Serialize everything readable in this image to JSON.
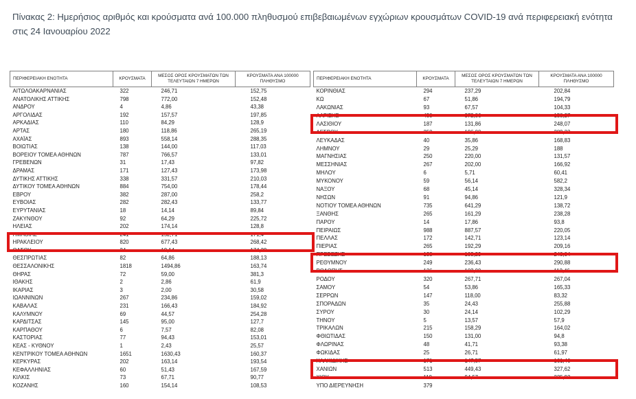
{
  "page": {
    "title": "Πίνακας 2:  Ημερήσιος αριθμός και κρούσματα ανά 100.000 πληθυσμού επιβεβαιωμένων εγχώριων κρουσμάτων COVID-19 ανά περιφερειακή ενότητα στις 24 Ιανουαρίου 2022"
  },
  "table": {
    "highlight_color": "#e01717",
    "headers": [
      "ΠΕΡΙΦΕΡΕΙΑΚΗ ΕΝΟΤΗΤΑ",
      "ΚΡΟΥΣΜΑΤΑ",
      "ΜΕΣΟΣ ΟΡΟΣ ΚΡΟΥΣΜΑΤΩΝ ΤΩΝ ΤΕΛΕΥΤΑΙΩΝ 7 ΗΜΕΡΩΝ",
      "ΚΡΟΥΣΜΑΤΑ ΑΝΑ 100000 ΠΛΗΘΥΣΜΟ"
    ],
    "left_rows": [
      {
        "region": "ΑΙΤΩΛΟΑΚΑΡΝΑΝΙΑΣ",
        "cases": "322",
        "avg7": "246,71",
        "per100k": "152,75",
        "highlighted": false
      },
      {
        "region": "ΑΝΑΤΟΛΙΚΗΣ ΑΤΤΙΚΗΣ",
        "cases": "798",
        "avg7": "772,00",
        "per100k": "152,48",
        "highlighted": false
      },
      {
        "region": "ΑΝΔΡΟΥ",
        "cases": "4",
        "avg7": "4,86",
        "per100k": "43,38",
        "highlighted": false
      },
      {
        "region": "ΑΡΓΟΛΙΔΑΣ",
        "cases": "192",
        "avg7": "157,57",
        "per100k": "197,85",
        "highlighted": false
      },
      {
        "region": "ΑΡΚΑΔΙΑΣ",
        "cases": "110",
        "avg7": "84,29",
        "per100k": "128,9",
        "highlighted": false
      },
      {
        "region": "ΑΡΤΑΣ",
        "cases": "180",
        "avg7": "118,86",
        "per100k": "265,19",
        "highlighted": false
      },
      {
        "region": "ΑΧΑΪΑΣ",
        "cases": "893",
        "avg7": "558,14",
        "per100k": "288,35",
        "highlighted": false
      },
      {
        "region": "ΒΟΙΩΤΙΑΣ",
        "cases": "138",
        "avg7": "144,00",
        "per100k": "117,03",
        "highlighted": false
      },
      {
        "region": "ΒΟΡΕΙΟΥ ΤΟΜΕΑ ΑΘΗΝΩΝ",
        "cases": "787",
        "avg7": "766,57",
        "per100k": "133,01",
        "highlighted": false
      },
      {
        "region": "ΓΡΕΒΕΝΩΝ",
        "cases": "31",
        "avg7": "17,43",
        "per100k": "97,82",
        "highlighted": false
      },
      {
        "region": "ΔΡΑΜΑΣ",
        "cases": "171",
        "avg7": "127,43",
        "per100k": "173,98",
        "highlighted": false
      },
      {
        "region": "ΔΥΤΙΚΗΣ ΑΤΤΙΚΗΣ",
        "cases": "338",
        "avg7": "331,57",
        "per100k": "210,03",
        "highlighted": false
      },
      {
        "region": "ΔΥΤΙΚΟΥ ΤΟΜΕΑ ΑΘΗΝΩΝ",
        "cases": "884",
        "avg7": "754,00",
        "per100k": "178,44",
        "highlighted": false
      },
      {
        "region": "ΕΒΡΟΥ",
        "cases": "382",
        "avg7": "287,00",
        "per100k": "258,2",
        "highlighted": false
      },
      {
        "region": "ΕΥΒΟΙΑΣ",
        "cases": "282",
        "avg7": "282,43",
        "per100k": "133,77",
        "highlighted": false
      },
      {
        "region": "ΕΥΡΥΤΑΝΙΑΣ",
        "cases": "18",
        "avg7": "14,14",
        "per100k": "89,84",
        "highlighted": false
      },
      {
        "region": "ΖΑΚΥΝΘΟΥ",
        "cases": "92",
        "avg7": "64,29",
        "per100k": "225,72",
        "highlighted": false
      },
      {
        "region": "ΗΛΕΙΑΣ",
        "cases": "202",
        "avg7": "174,14",
        "per100k": "128,8",
        "highlighted": false
      },
      {
        "region": "ΗΜΑΘΙΑΣ",
        "cases": "241",
        "avg7": "152,71",
        "per100k": "171,4",
        "highlighted": false
      },
      {
        "region": "ΗΡΑΚΛΕΙΟΥ",
        "cases": "820",
        "avg7": "677,43",
        "per100k": "268,42",
        "highlighted": true
      },
      {
        "region": "ΘΑΣΟΥ",
        "cases": "24",
        "avg7": "19,14",
        "per100k": "174,29",
        "highlighted": false
      },
      {
        "region": "ΘΕΣΠΡΩΤΙΑΣ",
        "cases": "82",
        "avg7": "64,86",
        "per100k": "188,13",
        "highlighted": false
      },
      {
        "region": "ΘΕΣΣΑΛΟΝΙΚΗΣ",
        "cases": "1818",
        "avg7": "1494,86",
        "per100k": "163,74",
        "highlighted": false
      },
      {
        "region": "ΘΗΡΑΣ",
        "cases": "72",
        "avg7": "59,00",
        "per100k": "381,3",
        "highlighted": false
      },
      {
        "region": "ΙΘΑΚΗΣ",
        "cases": "2",
        "avg7": "2,86",
        "per100k": "61,9",
        "highlighted": false
      },
      {
        "region": "ΙΚΑΡΙΑΣ",
        "cases": "3",
        "avg7": "2,00",
        "per100k": "30,58",
        "highlighted": false
      },
      {
        "region": "ΙΩΑΝΝΙΝΩΝ",
        "cases": "267",
        "avg7": "234,86",
        "per100k": "159,02",
        "highlighted": false
      },
      {
        "region": "ΚΑΒΑΛΑΣ",
        "cases": "231",
        "avg7": "166,43",
        "per100k": "184,92",
        "highlighted": false
      },
      {
        "region": "ΚΑΛΥΜΝΟΥ",
        "cases": "69",
        "avg7": "44,57",
        "per100k": "254,28",
        "highlighted": false
      },
      {
        "region": "ΚΑΡΔΙΤΣΑΣ",
        "cases": "145",
        "avg7": "95,00",
        "per100k": "127,7",
        "highlighted": false
      },
      {
        "region": "ΚΑΡΠΑΘΟΥ",
        "cases": "6",
        "avg7": "7,57",
        "per100k": "82,08",
        "highlighted": false
      },
      {
        "region": "ΚΑΣΤΟΡΙΑΣ",
        "cases": "77",
        "avg7": "94,43",
        "per100k": "153,01",
        "highlighted": false
      },
      {
        "region": "ΚΕΑΣ - ΚΥΘΝΟΥ",
        "cases": "1",
        "avg7": "2,43",
        "per100k": "25,57",
        "highlighted": false
      },
      {
        "region": "ΚΕΝΤΡΙΚΟΥ ΤΟΜΕΑ ΑΘΗΝΩΝ",
        "cases": "1651",
        "avg7": "1630,43",
        "per100k": "160,37",
        "highlighted": false
      },
      {
        "region": "ΚΕΡΚΥΡΑΣ",
        "cases": "202",
        "avg7": "163,14",
        "per100k": "193,54",
        "highlighted": false
      },
      {
        "region": "ΚΕΦΑΛΛΗΝΙΑΣ",
        "cases": "60",
        "avg7": "51,43",
        "per100k": "167,59",
        "highlighted": false
      },
      {
        "region": "ΚΙΛΚΙΣ",
        "cases": "73",
        "avg7": "67,71",
        "per100k": "90,77",
        "highlighted": false
      },
      {
        "region": "ΚΟΖΑΝΗΣ",
        "cases": "160",
        "avg7": "154,14",
        "per100k": "108,53",
        "highlighted": false
      }
    ],
    "right_rows": [
      {
        "region": "ΚΟΡΙΝΘΙΑΣ",
        "cases": "294",
        "avg7": "237,29",
        "per100k": "202,84",
        "highlighted": false
      },
      {
        "region": "ΚΩ",
        "cases": "67",
        "avg7": "51,86",
        "per100k": "194,79",
        "highlighted": false
      },
      {
        "region": "ΛΑΚΩΝΙΑΣ",
        "cases": "93",
        "avg7": "67,57",
        "per100k": "104,33",
        "highlighted": false
      },
      {
        "region": "ΛΑΡΙΣΗΣ",
        "cases": "450",
        "avg7": "372,86",
        "per100k": "158,27",
        "highlighted": false
      },
      {
        "region": "ΛΑΣΙΘΙΟΥ",
        "cases": "187",
        "avg7": "131,86",
        "per100k": "248,07",
        "highlighted": true
      },
      {
        "region": "ΛΕΣΒΟΥ",
        "cases": "250",
        "avg7": "196,00",
        "per100k": "289,23",
        "highlighted": false
      },
      {
        "region": "ΛΕΥΚΑΔΑΣ",
        "cases": "40",
        "avg7": "35,86",
        "per100k": "168,83",
        "highlighted": false
      },
      {
        "region": "ΛΗΜΝΟΥ",
        "cases": "29",
        "avg7": "25,29",
        "per100k": "188",
        "highlighted": false
      },
      {
        "region": "ΜΑΓΝΗΣΙΑΣ",
        "cases": "250",
        "avg7": "220,00",
        "per100k": "131,57",
        "highlighted": false
      },
      {
        "region": "ΜΕΣΣΗΝΙΑΣ",
        "cases": "267",
        "avg7": "202,00",
        "per100k": "166,92",
        "highlighted": false
      },
      {
        "region": "ΜΗΛΟΥ",
        "cases": "6",
        "avg7": "5,71",
        "per100k": "60,41",
        "highlighted": false
      },
      {
        "region": "ΜΥΚΟΝΟΥ",
        "cases": "59",
        "avg7": "56,14",
        "per100k": "582,2",
        "highlighted": false
      },
      {
        "region": "ΝΑΞΟΥ",
        "cases": "68",
        "avg7": "45,14",
        "per100k": "328,34",
        "highlighted": false
      },
      {
        "region": "ΝΗΣΩΝ",
        "cases": "91",
        "avg7": "94,86",
        "per100k": "121,9",
        "highlighted": false
      },
      {
        "region": "ΝΟΤΙΟΥ ΤΟΜΕΑ ΑΘΗΝΩΝ",
        "cases": "735",
        "avg7": "641,29",
        "per100k": "138,72",
        "highlighted": false
      },
      {
        "region": "ΞΑΝΘΗΣ",
        "cases": "265",
        "avg7": "161,29",
        "per100k": "238,28",
        "highlighted": false
      },
      {
        "region": "ΠΑΡΟΥ",
        "cases": "14",
        "avg7": "17,86",
        "per100k": "93,8",
        "highlighted": false
      },
      {
        "region": "ΠΕΙΡΑΙΩΣ",
        "cases": "988",
        "avg7": "887,57",
        "per100k": "220,05",
        "highlighted": false
      },
      {
        "region": "ΠΕΛΛΑΣ",
        "cases": "172",
        "avg7": "142,71",
        "per100k": "123,14",
        "highlighted": false
      },
      {
        "region": "ΠΙΕΡΙΑΣ",
        "cases": "265",
        "avg7": "192,29",
        "per100k": "209,16",
        "highlighted": false
      },
      {
        "region": "ΠΡΕΒΕΖΗΣ",
        "cases": "138",
        "avg7": "103,29",
        "per100k": "240,04",
        "highlighted": false
      },
      {
        "region": "ΡΕΘΥΜΝΟΥ",
        "cases": "249",
        "avg7": "236,43",
        "per100k": "290,88",
        "highlighted": true
      },
      {
        "region": "ΡΟΔΟΠΗΣ",
        "cases": "126",
        "avg7": "102,00",
        "per100k": "112,46",
        "highlighted": false
      },
      {
        "region": "ΡΟΔΟΥ",
        "cases": "320",
        "avg7": "267,71",
        "per100k": "267,04",
        "highlighted": false
      },
      {
        "region": "ΣΑΜΟΥ",
        "cases": "54",
        "avg7": "53,86",
        "per100k": "165,33",
        "highlighted": false
      },
      {
        "region": "ΣΕΡΡΩΝ",
        "cases": "147",
        "avg7": "118,00",
        "per100k": "83,32",
        "highlighted": false
      },
      {
        "region": "ΣΠΟΡΑΔΩΝ",
        "cases": "35",
        "avg7": "24,43",
        "per100k": "255,88",
        "highlighted": false
      },
      {
        "region": "ΣΥΡΟΥ",
        "cases": "30",
        "avg7": "24,14",
        "per100k": "102,29",
        "highlighted": false
      },
      {
        "region": "ΤΗΝΟΥ",
        "cases": "5",
        "avg7": "13,57",
        "per100k": "57,9",
        "highlighted": false
      },
      {
        "region": "ΤΡΙΚΑΛΩΝ",
        "cases": "215",
        "avg7": "158,29",
        "per100k": "164,02",
        "highlighted": false
      },
      {
        "region": "ΦΘΙΩΤΙΔΑΣ",
        "cases": "150",
        "avg7": "131,00",
        "per100k": "94,8",
        "highlighted": false
      },
      {
        "region": "ΦΛΩΡΙΝΑΣ",
        "cases": "48",
        "avg7": "41,71",
        "per100k": "93,38",
        "highlighted": false
      },
      {
        "region": "ΦΩΚΙΔΑΣ",
        "cases": "25",
        "avg7": "26,71",
        "per100k": "61,97",
        "highlighted": false
      },
      {
        "region": "ΧΑΛΚΙΔΙΚΗΣ",
        "cases": "171",
        "avg7": "147,57",
        "per100k": "161,46",
        "highlighted": false
      },
      {
        "region": "ΧΑΝΙΩΝ",
        "cases": "513",
        "avg7": "449,43",
        "per100k": "327,62",
        "highlighted": true
      },
      {
        "region": "ΧΙΟΥ",
        "cases": "119",
        "avg7": "94,57",
        "per100k": "225,92",
        "highlighted": false
      },
      {
        "region": "ΥΠΟ ΔΙΕΡΕΥΝΗΣΗ",
        "cases": "379",
        "avg7": "",
        "per100k": "",
        "highlighted": false
      }
    ]
  }
}
